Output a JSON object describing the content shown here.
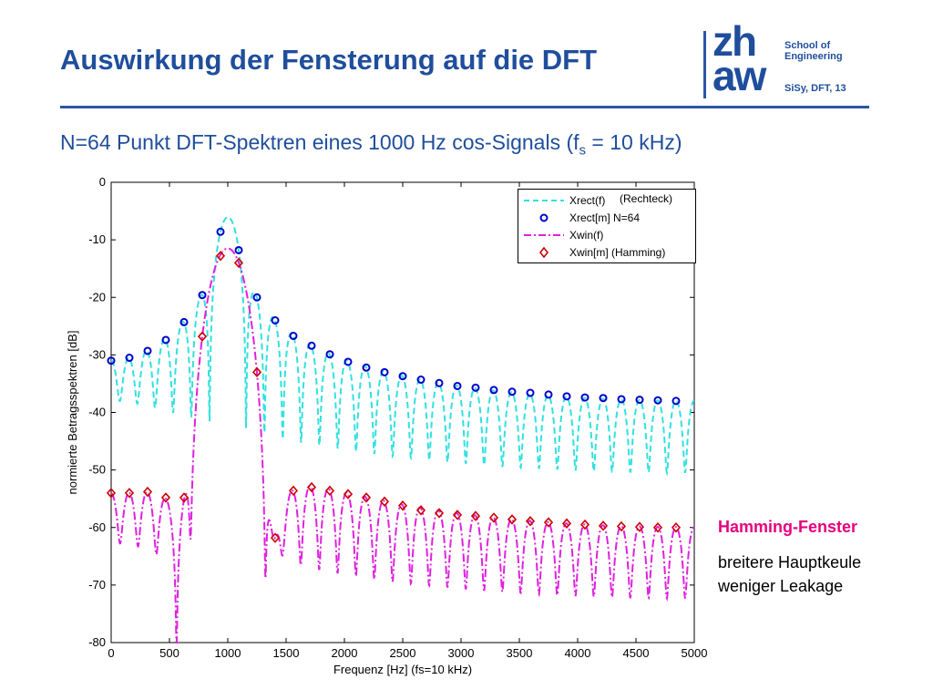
{
  "slide": {
    "title": "Auswirkung der Fensterung auf die DFT",
    "subtitle_pre": "N=64 Punkt DFT-Spektren eines 1000 Hz cos-Signals (f",
    "subtitle_sub": "s",
    "subtitle_post": " = 10 kHz)",
    "logo_line1": "zh",
    "logo_line2": "aw",
    "school_line1": "School of",
    "school_line2": "Engineering",
    "slide_ref": "SiSy, DFT, 13",
    "side_title": "Hamming-Fenster",
    "side_note1": "breitere Hauptkeule",
    "side_note2": "weniger Leakage"
  },
  "chart_data": {
    "type": "line",
    "xlabel": "Frequenz [Hz] (fs=10 kHz)",
    "ylabel": "normierte Betragsspektren [dB]",
    "xlim": [
      0,
      5000
    ],
    "ylim": [
      -80,
      0
    ],
    "xticks": [
      "0",
      "500",
      "1000",
      "1500",
      "2000",
      "2500",
      "3000",
      "3500",
      "4000",
      "4500",
      "5000"
    ],
    "yticks": [
      "0",
      "-10",
      "-20",
      "-30",
      "-40",
      "-50",
      "-60",
      "-70",
      "-80"
    ],
    "grid": false,
    "legend_position": "top-right",
    "annotation": "(Rechteck)",
    "colors": {
      "xrect_f": "#33e0e0",
      "xrect_m": "#0000cc",
      "xwin_f": "#e020e0",
      "xwin_m": "#cc0000"
    },
    "series": [
      {
        "name": "Xrect(f)",
        "style": "dashed",
        "description_peak_hz": 1000,
        "peak_db": -6,
        "x_null_spacing_hz": 156.25
      },
      {
        "name": "Xrect[m] N=64",
        "style": "circle",
        "x": [
          0,
          156.25,
          312.5,
          468.75,
          625,
          781.25,
          937.5,
          1093.75,
          1250,
          1406.25,
          1562.5,
          1718.75,
          1875,
          2031.25,
          2187.5,
          2343.75,
          2500,
          2656.25,
          2812.5,
          2968.75,
          3125,
          3281.25,
          3437.5,
          3593.75,
          3750,
          3906.25,
          4062.5,
          4218.75,
          4375,
          4531.25,
          4687.5,
          4843.75
        ],
        "y": [
          -31,
          -30.5,
          -29.3,
          -27.4,
          -24.3,
          -19.6,
          -8.6,
          -11.8,
          -20,
          -24,
          -26.7,
          -28.4,
          -29.9,
          -31.2,
          -32.2,
          -33,
          -33.7,
          -34.3,
          -34.9,
          -35.4,
          -35.7,
          -36.1,
          -36.4,
          -36.6,
          -36.9,
          -37.2,
          -37.4,
          -37.5,
          -37.7,
          -37.8,
          -37.9,
          -38
        ]
      },
      {
        "name": "Xwin(f)",
        "style": "dashdot",
        "description_peak_hz": 1000,
        "peak_db": -11.5
      },
      {
        "name": "Xwin[m] (Hamming)",
        "style": "diamond",
        "x": [
          0,
          156.25,
          312.5,
          468.75,
          625,
          781.25,
          937.5,
          1093.75,
          1250,
          1406.25,
          1562.5,
          1718.75,
          1875,
          2031.25,
          2187.5,
          2343.75,
          2500,
          2656.25,
          2812.5,
          2968.75,
          3125,
          3281.25,
          3437.5,
          3593.75,
          3750,
          3906.25,
          4062.5,
          4218.75,
          4375,
          4531.25,
          4687.5,
          4843.75
        ],
        "y": [
          -54,
          -54,
          -53.8,
          -54.8,
          -54.8,
          -26.8,
          -12.8,
          -14,
          -33,
          -61.8,
          -53.6,
          -53,
          -53.6,
          -54.2,
          -54.8,
          -55.5,
          -56.2,
          -57,
          -57.5,
          -57.8,
          -58,
          -58.3,
          -58.6,
          -58.9,
          -59.1,
          -59.3,
          -59.5,
          -59.7,
          -59.8,
          -59.9,
          -60,
          -60
        ]
      }
    ]
  }
}
